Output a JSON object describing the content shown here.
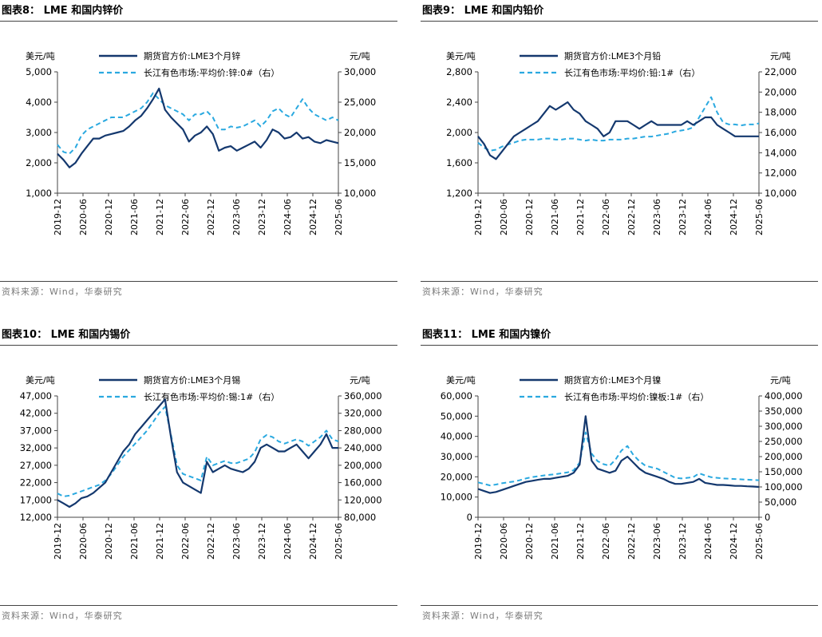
{
  "colors": {
    "lme": "#14386e",
    "cj": "#2aa9e0",
    "axis": "#444444",
    "source": "#7a7a7a"
  },
  "chart_data": [
    {
      "type": "line",
      "figure_title": "图表8：  LME 和国内锌价",
      "source": "资料来源：Wind，华泰研究",
      "left_unit": "美元/吨",
      "right_unit": "元/吨",
      "x_ticks": [
        "2019-12",
        "2020-06",
        "2020-12",
        "2021-06",
        "2021-12",
        "2022-06",
        "2022-12",
        "2023-06",
        "2023-12",
        "2024-06",
        "2024-12",
        "2025-06"
      ],
      "y_left": {
        "min": 1000,
        "max": 5000,
        "ticks": [
          "1,000",
          "2,000",
          "3,000",
          "4,000",
          "5,000"
        ]
      },
      "y_right": {
        "min": 10000,
        "max": 30000,
        "ticks": [
          "10,000",
          "15,000",
          "20,000",
          "25,000",
          "30,000"
        ]
      },
      "series": [
        {
          "name": "期货官方价:LME3个月锌",
          "axis": "left",
          "style": "solid",
          "values": [
            2300,
            2100,
            1850,
            2000,
            2300,
            2550,
            2800,
            2800,
            2900,
            2950,
            3000,
            3050,
            3200,
            3400,
            3550,
            3800,
            4100,
            4450,
            3750,
            3500,
            3300,
            3100,
            2700,
            2900,
            3000,
            3200,
            2950,
            2400,
            2500,
            2550,
            2400,
            2500,
            2600,
            2700,
            2500,
            2750,
            3100,
            3000,
            2800,
            2850,
            3000,
            2800,
            2850,
            2700,
            2650,
            2750,
            2700,
            2650
          ]
        },
        {
          "name": "长江有色市场:平均价:锌:0#（右）",
          "axis": "right",
          "style": "dashed",
          "values": [
            18000,
            16800,
            16500,
            17500,
            19500,
            20500,
            21000,
            21500,
            22000,
            22500,
            22500,
            22500,
            23000,
            23500,
            24000,
            25000,
            26500,
            25500,
            24500,
            24000,
            23500,
            23000,
            22000,
            23000,
            23000,
            23500,
            22500,
            20500,
            20500,
            21000,
            20800,
            21000,
            21500,
            22000,
            21000,
            22000,
            23500,
            24000,
            23000,
            22500,
            24000,
            25500,
            24000,
            23000,
            22500,
            22000,
            22500,
            22000
          ]
        }
      ]
    },
    {
      "type": "line",
      "figure_title": "图表9：  LME 和国内铅价",
      "source": "资料来源：Wind，华泰研究",
      "left_unit": "美元/吨",
      "right_unit": "元/吨",
      "x_ticks": [
        "2019-12",
        "2020-06",
        "2020-12",
        "2021-06",
        "2021-12",
        "2022-06",
        "2022-12",
        "2023-06",
        "2023-12",
        "2024-06",
        "2024-12",
        "2025-06"
      ],
      "y_left": {
        "min": 1200,
        "max": 2800,
        "ticks": [
          "1,200",
          "1,600",
          "2,000",
          "2,400",
          "2,800"
        ]
      },
      "y_right": {
        "min": 10000,
        "max": 22000,
        "ticks": [
          "10,000",
          "12,000",
          "14,000",
          "16,000",
          "18,000",
          "20,000",
          "22,000"
        ]
      },
      "series": [
        {
          "name": "期货官方价:LME3个月铅",
          "axis": "left",
          "style": "solid",
          "values": [
            1950,
            1850,
            1700,
            1650,
            1750,
            1850,
            1950,
            2000,
            2050,
            2100,
            2150,
            2250,
            2350,
            2300,
            2350,
            2400,
            2300,
            2250,
            2150,
            2100,
            2050,
            1950,
            2000,
            2150,
            2150,
            2150,
            2100,
            2050,
            2100,
            2150,
            2100,
            2100,
            2100,
            2100,
            2100,
            2150,
            2100,
            2150,
            2200,
            2200,
            2100,
            2050,
            2000,
            1950,
            1950,
            1950,
            1950,
            1950
          ]
        },
        {
          "name": "长江有色市场:平均价:铅:1#（右）",
          "axis": "right",
          "style": "dashed",
          "values": [
            15000,
            14500,
            14200,
            14300,
            14600,
            14800,
            15000,
            15200,
            15300,
            15300,
            15300,
            15400,
            15400,
            15300,
            15300,
            15400,
            15400,
            15300,
            15200,
            15300,
            15200,
            15200,
            15300,
            15300,
            15300,
            15400,
            15400,
            15500,
            15600,
            15600,
            15700,
            15800,
            15900,
            16100,
            16200,
            16300,
            16500,
            17500,
            18500,
            19500,
            18000,
            17000,
            16800,
            16800,
            16700,
            16800,
            16800,
            16900
          ]
        }
      ]
    },
    {
      "type": "line",
      "figure_title": "图表10：  LME 和国内锡价",
      "source": "资料来源：Wind，华泰研究",
      "left_unit": "美元/吨",
      "right_unit": "元/吨",
      "x_ticks": [
        "2019-12",
        "2020-06",
        "2020-12",
        "2021-06",
        "2021-12",
        "2022-06",
        "2022-12",
        "2023-06",
        "2023-12",
        "2024-06",
        "2024-12",
        "2025-06"
      ],
      "y_left": {
        "min": 12000,
        "max": 47000,
        "ticks": [
          "12,000",
          "17,000",
          "22,000",
          "27,000",
          "32,000",
          "37,000",
          "42,000",
          "47,000"
        ]
      },
      "y_right": {
        "min": 80000,
        "max": 360000,
        "ticks": [
          "80,000",
          "120,000",
          "160,000",
          "200,000",
          "240,000",
          "280,000",
          "320,000",
          "360,000"
        ]
      },
      "series": [
        {
          "name": "期货官方价:LME3个月锡",
          "axis": "left",
          "style": "solid",
          "values": [
            17000,
            16000,
            15000,
            16000,
            17500,
            18000,
            19000,
            20500,
            22000,
            25000,
            28000,
            31000,
            33000,
            36000,
            38000,
            40000,
            42000,
            44000,
            46000,
            35000,
            25000,
            22000,
            21000,
            20000,
            19000,
            28000,
            25000,
            26000,
            27000,
            26000,
            25500,
            25000,
            26000,
            28000,
            32000,
            33000,
            32000,
            31000,
            31000,
            32000,
            33000,
            31000,
            29000,
            31000,
            33000,
            36000,
            32000,
            32000
          ]
        },
        {
          "name": "长江有色市场:平均价:锡:1#（右）",
          "axis": "right",
          "style": "dashed",
          "values": [
            135000,
            128000,
            130000,
            135000,
            140000,
            145000,
            150000,
            155000,
            165000,
            180000,
            200000,
            220000,
            235000,
            250000,
            265000,
            280000,
            300000,
            320000,
            335000,
            270000,
            200000,
            180000,
            175000,
            170000,
            165000,
            220000,
            200000,
            205000,
            210000,
            205000,
            205000,
            210000,
            215000,
            230000,
            260000,
            270000,
            265000,
            255000,
            250000,
            255000,
            260000,
            255000,
            245000,
            255000,
            265000,
            280000,
            260000,
            255000
          ]
        }
      ]
    },
    {
      "type": "line",
      "figure_title": "图表11：  LME 和国内镍价",
      "source": "资料来源：Wind，华泰研究",
      "left_unit": "美元/吨",
      "right_unit": "元/吨",
      "x_ticks": [
        "2019-12",
        "2020-06",
        "2020-12",
        "2021-06",
        "2021-12",
        "2022-06",
        "2022-12",
        "2023-06",
        "2023-12",
        "2024-06",
        "2024-12",
        "2025-06"
      ],
      "y_left": {
        "min": 0,
        "max": 60000,
        "ticks": [
          "0",
          "10,000",
          "20,000",
          "30,000",
          "40,000",
          "50,000",
          "60,000"
        ]
      },
      "y_right": {
        "min": 0,
        "max": 400000,
        "ticks": [
          "0",
          "50,000",
          "100,000",
          "150,000",
          "200,000",
          "250,000",
          "300,000",
          "350,000",
          "400,000"
        ]
      },
      "series": [
        {
          "name": "期货官方价:LME3个月镍",
          "axis": "left",
          "style": "solid",
          "values": [
            14000,
            13000,
            12000,
            12500,
            13500,
            14500,
            15500,
            16500,
            17500,
            18000,
            18500,
            19000,
            19000,
            19500,
            20000,
            20500,
            22000,
            26000,
            50000,
            28000,
            24000,
            23000,
            22000,
            23000,
            28000,
            30000,
            27000,
            24000,
            22000,
            21000,
            20000,
            19000,
            17500,
            16500,
            16500,
            17000,
            17500,
            19000,
            17000,
            16500,
            16000,
            16000,
            15800,
            15500,
            15500,
            15300,
            15200,
            15000
          ]
        },
        {
          "name": "长江有色市场:平均价:镍板:1#（右）",
          "axis": "right",
          "style": "dashed",
          "values": [
            115000,
            110000,
            105000,
            108000,
            112000,
            115000,
            118000,
            122000,
            128000,
            132000,
            135000,
            138000,
            140000,
            142000,
            145000,
            148000,
            155000,
            180000,
            280000,
            210000,
            185000,
            175000,
            170000,
            190000,
            220000,
            235000,
            205000,
            185000,
            170000,
            165000,
            160000,
            150000,
            140000,
            130000,
            128000,
            130000,
            132000,
            145000,
            138000,
            132000,
            130000,
            128000,
            127000,
            126000,
            125000,
            124000,
            123000,
            122000
          ]
        }
      ]
    }
  ]
}
